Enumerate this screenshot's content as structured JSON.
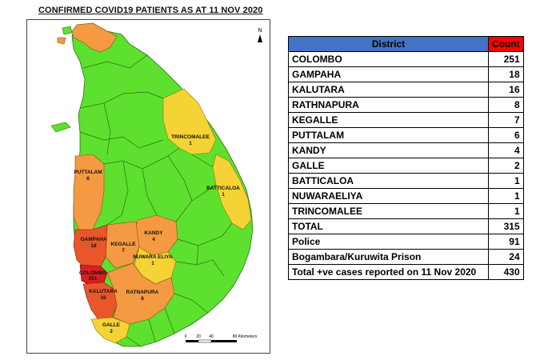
{
  "title": "CONFIRMED COVID19 PATIENTS AS AT 11 NOV 2020",
  "table": {
    "headers": {
      "district": "District",
      "count": "Count"
    },
    "rows": [
      {
        "name": "COLOMBO",
        "count": "251"
      },
      {
        "name": "GAMPAHA",
        "count": "18"
      },
      {
        "name": "KALUTARA",
        "count": "16"
      },
      {
        "name": "RATHNAPURA",
        "count": "8"
      },
      {
        "name": "KEGALLE",
        "count": "7"
      },
      {
        "name": "PUTTALAM",
        "count": "6"
      },
      {
        "name": "KANDY",
        "count": "4"
      },
      {
        "name": "GALLE",
        "count": "2"
      },
      {
        "name": "BATTICALOA",
        "count": "1"
      },
      {
        "name": "NUWARAELIYA",
        "count": "1"
      },
      {
        "name": "TRINCOMALEE",
        "count": "1"
      },
      {
        "name": "TOTAL",
        "count": "315"
      },
      {
        "name": "Police",
        "count": "91"
      },
      {
        "name": "Bogambara/Kuruwita Prison",
        "count": "24"
      },
      {
        "name": "Total +ve cases reported on 11 Nov 2020",
        "count": "430"
      }
    ]
  },
  "map": {
    "north_arrow": "N",
    "scale_ticks": [
      "0",
      "20",
      "40",
      "80 Kilometers"
    ],
    "labels": {
      "trincomalee": {
        "name": "TRINCOMALEE",
        "count": "1"
      },
      "puttalam": {
        "name": "PUTTALAM",
        "count": "6"
      },
      "batticaloa": {
        "name": "BATTICALOA",
        "count": "1"
      },
      "kandy": {
        "name": "KANDY",
        "count": "4"
      },
      "gampaha": {
        "name": "GAMPAHA",
        "count": "18"
      },
      "kegalle": {
        "name": "KEGALLE",
        "count": "7"
      },
      "nuwara_eliya": {
        "name": "NUWARA ELIYA",
        "count": "1"
      },
      "colombo": {
        "name": "COLOMBO",
        "count": "251"
      },
      "kalutara": {
        "name": "KALUTARA",
        "count": "16"
      },
      "ratnapura": {
        "name": "RATNAPURA",
        "count": "8"
      },
      "galle": {
        "name": "GALLE",
        "count": "2"
      }
    },
    "colors": {
      "none": "#5ee02e",
      "low": "#f5d335",
      "mid": "#f39a42",
      "high": "#e8562a",
      "highest": "#d81f1f",
      "header_blue": "#4472c4",
      "header_red": "#ff0000"
    }
  }
}
